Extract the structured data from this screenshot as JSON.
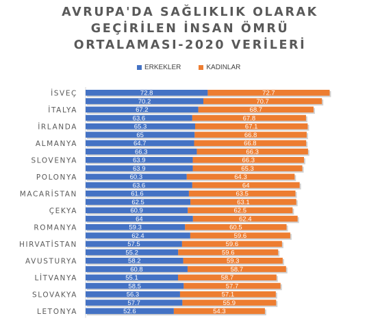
{
  "chart_data": {
    "type": "bar",
    "orientation": "horizontal",
    "stacked": true,
    "title": "AVRUPA'DA SAĞLIKLIK OLARAK GEÇİRİLEN İNSAN ÖMRÜ ORTALAMASI-2020 VERİLERİ",
    "title_lines": [
      "AVRUPA'DA SAĞLIKLIK OLARAK",
      "GEÇİRİLEN İNSAN ÖMRÜ",
      "ORTALAMASI-2020 VERİLERİ"
    ],
    "legend_position": "top",
    "grid": false,
    "categories": [
      "İSVEÇ",
      "",
      "İTALYA",
      "",
      "İRLANDA",
      "",
      "ALMANYA",
      "",
      "SLOVENYA",
      "",
      "POLONYA",
      "",
      "MACARİSTAN",
      "",
      "ÇEKYA",
      "",
      "ROMANYA",
      "",
      "HIRVATİSTAN",
      "",
      "AVUSTURYA",
      "",
      "LİTVANYA",
      "",
      "SLOVAKYA",
      "",
      "LETONYA"
    ],
    "series": [
      {
        "name": "ERKEKLER",
        "color": "#4472c4",
        "values": [
          72.8,
          70.2,
          67.2,
          63.6,
          65.3,
          65,
          64.7,
          66.3,
          63.9,
          63.9,
          60.3,
          63.6,
          61.6,
          62.5,
          60.9,
          64,
          59.3,
          62.4,
          57.5,
          55.2,
          58.2,
          60.8,
          55.1,
          58.5,
          56.3,
          57.7,
          52.6
        ]
      },
      {
        "name": "KADINLAR",
        "color": "#ed7d31",
        "values": [
          72.7,
          70.7,
          68.7,
          67.8,
          67.1,
          66.8,
          66.8,
          66.3,
          66.3,
          65.3,
          64.3,
          64,
          63.5,
          63.1,
          62.5,
          62.4,
          60.5,
          59.6,
          59.6,
          59.6,
          59.3,
          58.7,
          58.7,
          57.7,
          57.1,
          55.9,
          54.3
        ]
      }
    ]
  }
}
